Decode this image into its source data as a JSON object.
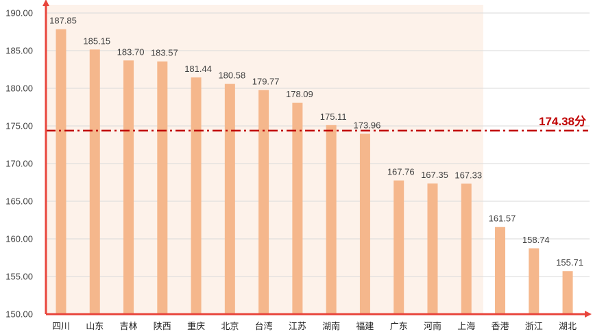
{
  "chart_data": {
    "type": "bar",
    "title": "",
    "xlabel": "",
    "ylabel": "",
    "ylim": [
      150,
      190
    ],
    "y_ticks": [
      "150.00",
      "155.00",
      "160.00",
      "165.00",
      "170.00",
      "175.00",
      "180.00",
      "185.00",
      "190.00"
    ],
    "categories": [
      "四川",
      "山东",
      "吉林",
      "陕西",
      "重庆",
      "北京",
      "台湾",
      "江苏",
      "湖南",
      "福建",
      "广东",
      "河南",
      "上海",
      "香港",
      "浙江",
      "湖北"
    ],
    "values": [
      187.85,
      185.15,
      183.7,
      183.57,
      181.44,
      180.58,
      179.77,
      178.09,
      175.11,
      173.96,
      167.76,
      167.35,
      167.33,
      161.57,
      158.74,
      155.71
    ],
    "value_labels": [
      "187.85",
      "185.15",
      "183.70",
      "183.57",
      "181.44",
      "180.58",
      "179.77",
      "178.09",
      "175.11",
      "173.96",
      "167.76",
      "167.35",
      "167.33",
      "161.57",
      "158.74",
      "155.71"
    ],
    "reference_line": {
      "value": 174.38,
      "label": "174.38分",
      "style": "dash-dot",
      "color": "#c00000"
    },
    "highlight_band": {
      "from_category": "四川",
      "to_category": "上海",
      "color": "#fdf2ea"
    },
    "colors": {
      "bar": "#f5b78c",
      "axis": "#e8453c",
      "grid": "#d9d9d9"
    },
    "grid": true,
    "legend": "none"
  }
}
